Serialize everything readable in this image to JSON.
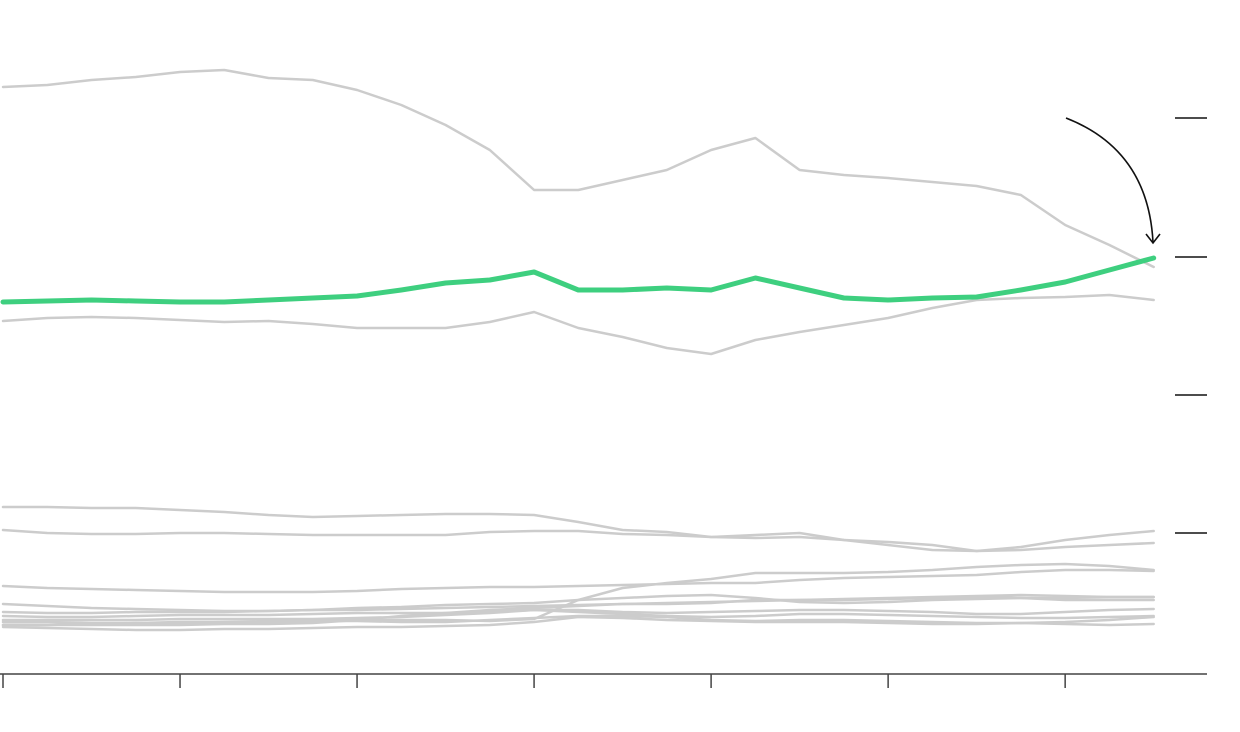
{
  "chart_data": {
    "type": "line",
    "x": [
      0,
      0.25,
      0.5,
      0.75,
      1,
      1.25,
      1.5,
      1.75,
      2,
      2.25,
      2.5,
      2.75,
      3,
      3.25,
      3.5,
      3.75,
      4,
      4.25,
      4.5,
      4.75,
      5,
      5.25,
      5.5,
      5.75,
      6,
      6.25,
      6.5
    ],
    "xlim": [
      0,
      6.79
    ],
    "xticks": [
      0,
      1,
      2,
      3,
      4,
      5,
      6
    ],
    "ylim": [
      0,
      672
    ],
    "yticks": [
      139,
      277,
      415,
      554
    ],
    "series": [
      {
        "color": "#cccccc",
        "values": [
          585,
          587,
          592,
          595,
          600,
          602,
          594,
          592,
          582,
          567,
          547,
          522,
          482,
          482,
          492,
          502,
          522,
          534,
          502,
          497,
          494,
          490,
          486,
          477,
          447,
          427,
          405
        ]
      },
      {
        "color": "#cccccc",
        "values": [
          351,
          354,
          355,
          354,
          352,
          350,
          351,
          348,
          344,
          344,
          344,
          350,
          360,
          344,
          335,
          324,
          318,
          332,
          340,
          347,
          354,
          364,
          372,
          374,
          375,
          377,
          372
        ]
      },
      {
        "color": "#cccccc",
        "values": [
          165,
          165,
          164,
          164,
          162,
          160,
          157,
          155,
          156,
          157,
          158,
          158,
          157,
          150,
          142,
          140,
          135,
          137,
          139,
          132,
          127,
          122,
          121,
          125,
          132,
          137,
          141
        ]
      },
      {
        "color": "#cccccc",
        "values": [
          142,
          139,
          138,
          138,
          139,
          139,
          138,
          137,
          137,
          137,
          137,
          140,
          141,
          141,
          138,
          137,
          135,
          134,
          135,
          132,
          130,
          127,
          121,
          122,
          125,
          127,
          129
        ]
      },
      {
        "color": "#cccccc",
        "values": [
          86,
          84,
          83,
          82,
          81,
          80,
          80,
          80,
          81,
          83,
          84,
          85,
          85,
          86,
          87,
          88,
          89,
          89,
          92,
          94,
          95,
          96,
          97,
          100,
          102,
          102,
          101
        ]
      },
      {
        "color": "#cccccc",
        "values": [
          47,
          47,
          48,
          49,
          50,
          50,
          51,
          52,
          52,
          52,
          52,
          51,
          53,
          72,
          84,
          89,
          93,
          99,
          99,
          99,
          100,
          102,
          105,
          107,
          108,
          106,
          102
        ]
      },
      {
        "color": "#cccccc",
        "values": [
          68,
          66,
          64,
          63,
          62,
          61,
          61,
          62,
          64,
          65,
          67,
          68,
          69,
          72,
          74,
          76,
          77,
          74,
          70,
          69,
          70,
          72,
          73,
          74,
          74,
          75,
          75
        ]
      },
      {
        "color": "#cccccc",
        "values": [
          60,
          59,
          59,
          60,
          60,
          60,
          61,
          62,
          62,
          63,
          64,
          65,
          66,
          67,
          68,
          69,
          70,
          71,
          72,
          73,
          74,
          75,
          76,
          77,
          76,
          75,
          75
        ]
      },
      {
        "color": "#cccccc",
        "values": [
          56,
          55,
          55,
          56,
          57,
          57,
          57,
          58,
          59,
          59,
          59,
          60,
          62,
          60,
          58,
          56,
          55,
          56,
          58,
          58,
          57,
          56,
          55,
          54,
          54,
          55,
          56
        ]
      },
      {
        "color": "#cccccc",
        "values": [
          52,
          52,
          52,
          52,
          53,
          53,
          53,
          53,
          54,
          55,
          57,
          59,
          62,
          62,
          60,
          59,
          60,
          61,
          62,
          62,
          61,
          60,
          58,
          58,
          60,
          62,
          63
        ]
      },
      {
        "color": "#cccccc",
        "values": [
          50,
          50,
          49,
          49,
          49,
          50,
          50,
          51,
          51,
          50,
          50,
          52,
          54,
          56,
          56,
          55,
          52,
          51,
          52,
          52,
          51,
          50,
          49,
          49,
          50,
          52,
          55
        ]
      },
      {
        "color": "#cccccc",
        "values": [
          45,
          44,
          43,
          42,
          42,
          43,
          43,
          44,
          45,
          45,
          46,
          47,
          50,
          55,
          54,
          52,
          51,
          50,
          50,
          50,
          49,
          48,
          48,
          49,
          48,
          47,
          48
        ]
      },
      {
        "color": "#cccccc",
        "values": [
          47,
          47,
          47,
          47,
          47,
          48,
          48,
          49,
          52,
          56,
          59,
          62,
          64,
          66,
          68,
          68,
          69,
          72,
          72,
          72,
          73,
          74,
          75,
          74,
          72,
          72,
          72
        ]
      },
      {
        "color": "#3ecf7f",
        "values": [
          370,
          371,
          372,
          371,
          370,
          370,
          372,
          374,
          376,
          382,
          389,
          392,
          400,
          382,
          382,
          384,
          382,
          394,
          384,
          374,
          372,
          374,
          375,
          382,
          390,
          402,
          414
        ]
      }
    ]
  }
}
